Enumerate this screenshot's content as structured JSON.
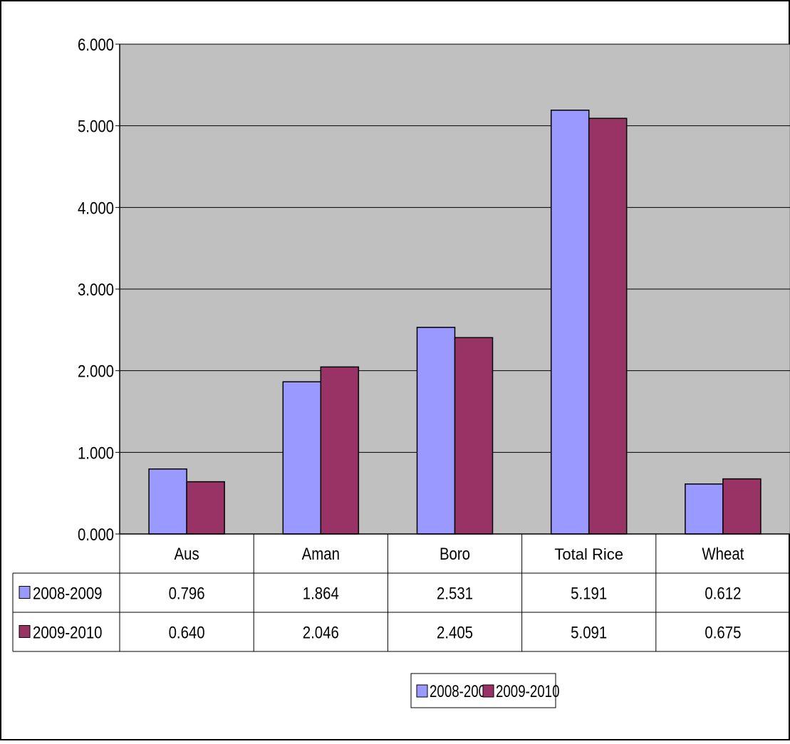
{
  "chart_data": {
    "type": "bar",
    "categories": [
      "Aus",
      "Aman",
      "Boro",
      "Total Rice",
      "Wheat"
    ],
    "series": [
      {
        "name": "2008-2009",
        "color": "#9999ff",
        "values": [
          0.796,
          1.864,
          2.531,
          5.191,
          0.612
        ]
      },
      {
        "name": "2009-2010",
        "color": "#993366",
        "values": [
          0.64,
          2.046,
          2.405,
          5.091,
          0.675
        ]
      }
    ],
    "y_ticks": [
      "0.000",
      "1.000",
      "2.000",
      "3.000",
      "4.000",
      "5.000",
      "6.000"
    ],
    "ylim": [
      0,
      6
    ],
    "grid": true,
    "plot_background": "#c0c0c0",
    "data_table": {
      "rows": [
        {
          "series": "2008-2009",
          "cells": [
            "0.796",
            "1.864",
            "2.531",
            "5.191",
            "0.612"
          ]
        },
        {
          "series": "2009-2010",
          "cells": [
            "0.640",
            "2.046",
            "2.405",
            "5.091",
            "0.675"
          ]
        }
      ]
    },
    "legend": {
      "placement": "bottom-center",
      "entries": [
        "2008-2009",
        "2009-2010"
      ]
    }
  }
}
